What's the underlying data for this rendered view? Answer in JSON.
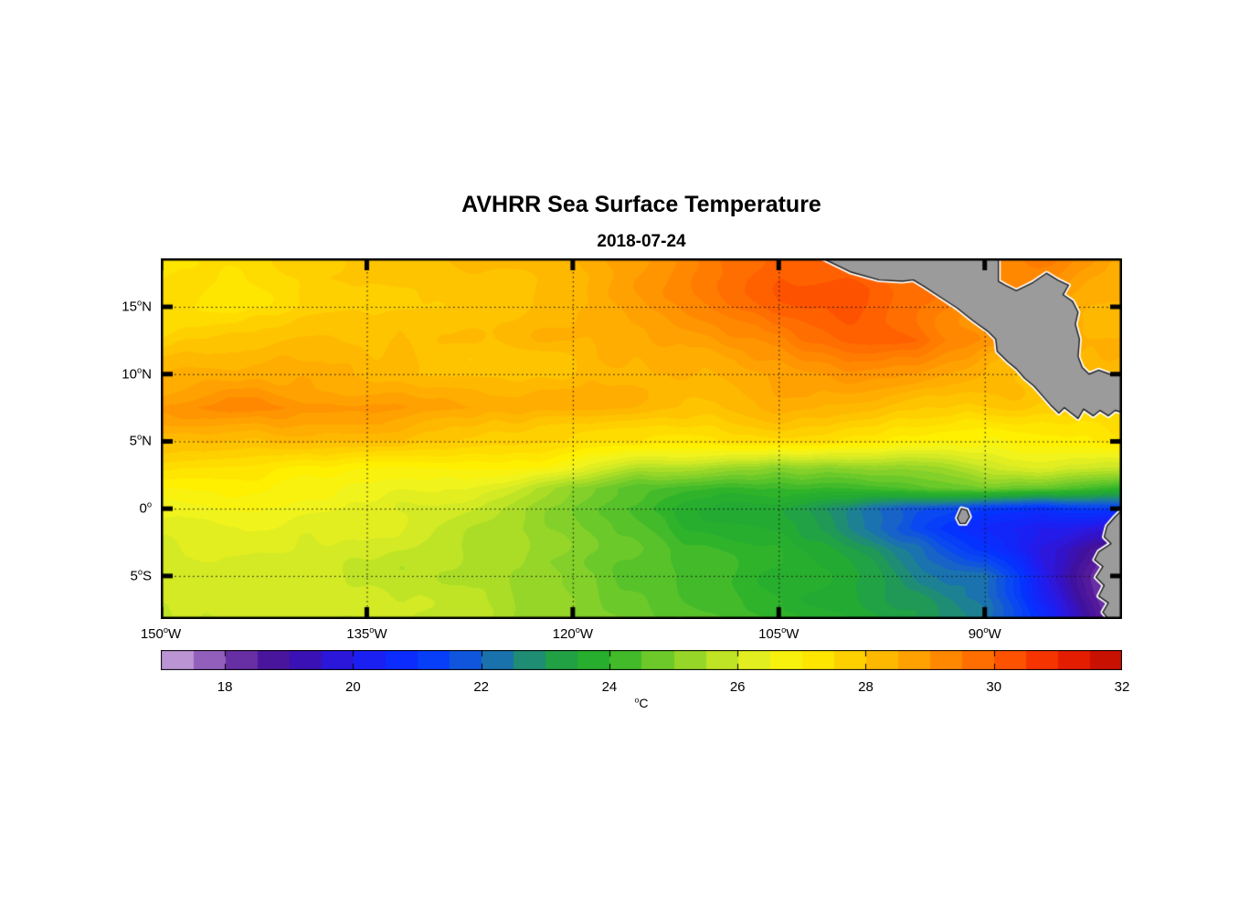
{
  "title": "AVHRR Sea Surface Temperature",
  "subtitle": "2018-07-24",
  "chart_data": {
    "type": "heatmap",
    "title": "AVHRR Sea Surface Temperature",
    "subtitle": "2018-07-24",
    "units": "°C",
    "lon_range": [
      -150,
      -80
    ],
    "lat_range": [
      -8.2,
      18.6
    ],
    "x_ticks": [
      {
        "value": -150,
        "label": "150°W"
      },
      {
        "value": -135,
        "label": "135°W"
      },
      {
        "value": -120,
        "label": "120°W"
      },
      {
        "value": -105,
        "label": "105°W"
      },
      {
        "value": -90,
        "label": "90°W"
      }
    ],
    "y_ticks": [
      {
        "value": 15,
        "label": "15°N"
      },
      {
        "value": 10,
        "label": "10°N"
      },
      {
        "value": 5,
        "label": "5°N"
      },
      {
        "value": 0,
        "label": "0°"
      },
      {
        "value": -5,
        "label": "5°S"
      }
    ],
    "grid": {
      "lons": [
        -150,
        -145,
        -140,
        -135,
        -130,
        -125,
        -120,
        -115,
        -110,
        -105,
        -100,
        -95,
        -90,
        -85,
        -80
      ],
      "lats": [
        18.6,
        15,
        12.5,
        10,
        7.5,
        5,
        3,
        1.5,
        0,
        -1.5,
        -3,
        -5,
        -6.5,
        -8.2
      ],
      "sst_c": [
        [
          27.6,
          27.5,
          27.6,
          27.8,
          27.9,
          28.0,
          28.3,
          28.8,
          29.6,
          30.1,
          30.0,
          29.6,
          29.2,
          29.4,
          28.6
        ],
        [
          27.3,
          27.4,
          27.5,
          27.7,
          27.8,
          28.0,
          28.2,
          28.6,
          29.2,
          29.9,
          30.1,
          29.6,
          29.0,
          28.6,
          28.3
        ],
        [
          27.9,
          28.0,
          28.1,
          28.0,
          28.1,
          28.2,
          28.3,
          28.5,
          28.8,
          29.3,
          29.9,
          30.0,
          29.0,
          28.5,
          28.3
        ],
        [
          28.4,
          28.6,
          28.5,
          28.3,
          28.2,
          28.2,
          28.2,
          28.3,
          28.5,
          28.7,
          29.0,
          28.8,
          28.3,
          28.0,
          27.9
        ],
        [
          29.1,
          29.4,
          29.2,
          29.0,
          28.8,
          28.6,
          28.4,
          28.2,
          28.2,
          28.3,
          28.2,
          28.0,
          27.8,
          27.7,
          27.8
        ],
        [
          28.1,
          28.2,
          28.2,
          28.1,
          28.0,
          27.9,
          27.7,
          27.5,
          27.4,
          27.4,
          27.3,
          27.1,
          26.9,
          27.1,
          27.4
        ],
        [
          27.2,
          27.2,
          27.1,
          27.0,
          26.9,
          26.8,
          26.4,
          25.7,
          25.1,
          24.9,
          25.1,
          25.3,
          25.7,
          26.0,
          25.8
        ],
        [
          26.9,
          26.8,
          26.7,
          26.6,
          26.4,
          25.9,
          24.9,
          24.4,
          24.1,
          23.9,
          24.1,
          24.4,
          24.8,
          24.6,
          24.0
        ],
        [
          26.6,
          26.5,
          26.4,
          26.3,
          26.0,
          25.4,
          24.6,
          24.1,
          23.7,
          23.2,
          22.6,
          21.6,
          21.2,
          21.0,
          21.4
        ],
        [
          26.4,
          26.3,
          26.2,
          26.1,
          25.8,
          25.3,
          24.8,
          24.3,
          23.9,
          23.5,
          22.8,
          21.6,
          20.6,
          20.0,
          19.4
        ],
        [
          26.3,
          26.2,
          26.1,
          26.0,
          25.7,
          25.4,
          25.0,
          24.6,
          24.2,
          23.8,
          23.3,
          22.4,
          21.0,
          19.6,
          18.2
        ],
        [
          26.2,
          26.1,
          26.0,
          25.9,
          25.7,
          25.4,
          25.1,
          24.7,
          24.3,
          23.9,
          23.5,
          22.8,
          22.3,
          19.8,
          17.7
        ],
        [
          26.1,
          26.0,
          26.0,
          25.8,
          25.6,
          25.4,
          25.1,
          24.8,
          24.4,
          24.0,
          23.6,
          23.0,
          22.0,
          19.9,
          17.5
        ],
        [
          26.0,
          26.0,
          25.9,
          25.8,
          25.6,
          25.4,
          25.2,
          24.9,
          24.6,
          24.2,
          23.8,
          23.2,
          22.3,
          20.4,
          17.8
        ]
      ]
    },
    "colorbar": {
      "min": 17,
      "max": 32,
      "ticks": [
        18,
        20,
        22,
        24,
        26,
        28,
        30,
        32
      ],
      "unit": "°C",
      "stops": [
        [
          17.0,
          "#cbaade"
        ],
        [
          17.5,
          "#a97fc9"
        ],
        [
          18.0,
          "#7b42ae"
        ],
        [
          18.5,
          "#551a9b"
        ],
        [
          19.0,
          "#40109f"
        ],
        [
          19.5,
          "#3313c9"
        ],
        [
          20.0,
          "#241bea"
        ],
        [
          20.5,
          "#1226fa"
        ],
        [
          21.0,
          "#0433ff"
        ],
        [
          21.5,
          "#0a49f2"
        ],
        [
          22.0,
          "#1763c8"
        ],
        [
          22.5,
          "#1d8193"
        ],
        [
          23.0,
          "#1f9955"
        ],
        [
          23.5,
          "#23aa33"
        ],
        [
          24.0,
          "#2eb32a"
        ],
        [
          24.5,
          "#57c22a"
        ],
        [
          25.0,
          "#82d029"
        ],
        [
          25.5,
          "#abdd27"
        ],
        [
          26.0,
          "#d3ea24"
        ],
        [
          26.5,
          "#f1f31c"
        ],
        [
          27.0,
          "#fff000"
        ],
        [
          27.5,
          "#ffdc00"
        ],
        [
          28.0,
          "#ffc400"
        ],
        [
          28.5,
          "#ffad00"
        ],
        [
          29.0,
          "#ff9500"
        ],
        [
          29.5,
          "#ff7c00"
        ],
        [
          30.0,
          "#ff6100"
        ],
        [
          30.5,
          "#fb4300"
        ],
        [
          31.0,
          "#f02600"
        ],
        [
          31.5,
          "#d81500"
        ],
        [
          32.0,
          "#b80d00"
        ]
      ]
    },
    "map": {
      "land_color": "#9b9b9b",
      "coast_halo_color": "#ffffff",
      "coast_line_color": "#1c1c1c",
      "grid_line_color": "#111111",
      "frame_color": "#000000",
      "land_polygons": [
        {
          "name": "central-america",
          "lonlat": [
            [
              -101.8,
              18.6
            ],
            [
              -99.8,
              17.6
            ],
            [
              -97.7,
              17.0
            ],
            [
              -96.0,
              16.9
            ],
            [
              -95.2,
              17.0
            ],
            [
              -94.4,
              16.5
            ],
            [
              -93.2,
              15.7
            ],
            [
              -92.0,
              14.9
            ],
            [
              -90.9,
              14.0
            ],
            [
              -89.8,
              13.2
            ],
            [
              -89.2,
              12.6
            ],
            [
              -89.1,
              11.7
            ],
            [
              -88.3,
              10.9
            ],
            [
              -87.7,
              10.4
            ],
            [
              -87.1,
              9.7
            ],
            [
              -86.4,
              9.1
            ],
            [
              -85.8,
              8.4
            ],
            [
              -85.2,
              7.7
            ],
            [
              -84.6,
              7.1
            ],
            [
              -84.2,
              7.5
            ],
            [
              -83.7,
              7.1
            ],
            [
              -83.2,
              6.7
            ],
            [
              -82.8,
              7.4
            ],
            [
              -82.1,
              6.9
            ],
            [
              -81.6,
              7.3
            ],
            [
              -81.0,
              6.9
            ],
            [
              -80.5,
              7.3
            ],
            [
              -79.8,
              7.1
            ],
            [
              -79.8,
              9.9
            ],
            [
              -80.9,
              10.0
            ],
            [
              -81.7,
              10.3
            ],
            [
              -82.4,
              10.0
            ],
            [
              -82.9,
              10.5
            ],
            [
              -83.2,
              11.3
            ],
            [
              -83.1,
              12.6
            ],
            [
              -83.4,
              13.7
            ],
            [
              -83.2,
              14.6
            ],
            [
              -83.6,
              15.4
            ],
            [
              -84.3,
              15.9
            ],
            [
              -83.9,
              16.6
            ],
            [
              -84.7,
              17.0
            ],
            [
              -85.5,
              17.5
            ],
            [
              -86.5,
              16.8
            ],
            [
              -87.7,
              16.2
            ],
            [
              -88.5,
              16.6
            ],
            [
              -89.0,
              16.9
            ],
            [
              -89.0,
              18.7
            ]
          ]
        },
        {
          "name": "south-america",
          "lonlat": [
            [
              -79.8,
              0.1
            ],
            [
              -80.5,
              -0.6
            ],
            [
              -81.1,
              -1.3
            ],
            [
              -81.3,
              -2.1
            ],
            [
              -80.8,
              -2.6
            ],
            [
              -81.7,
              -3.2
            ],
            [
              -82.0,
              -3.8
            ],
            [
              -81.4,
              -4.3
            ],
            [
              -81.9,
              -5.1
            ],
            [
              -81.3,
              -5.7
            ],
            [
              -81.7,
              -6.5
            ],
            [
              -81.0,
              -7.0
            ],
            [
              -81.4,
              -7.7
            ],
            [
              -80.9,
              -8.3
            ],
            [
              -79.8,
              -8.3
            ]
          ]
        },
        {
          "name": "galapagos-islands",
          "lonlat": [
            [
              -91.7,
              0.0
            ],
            [
              -91.3,
              -0.1
            ],
            [
              -91.1,
              -0.6
            ],
            [
              -91.4,
              -1.1
            ],
            [
              -91.8,
              -1.1
            ],
            [
              -92.0,
              -0.7
            ]
          ]
        }
      ]
    }
  }
}
